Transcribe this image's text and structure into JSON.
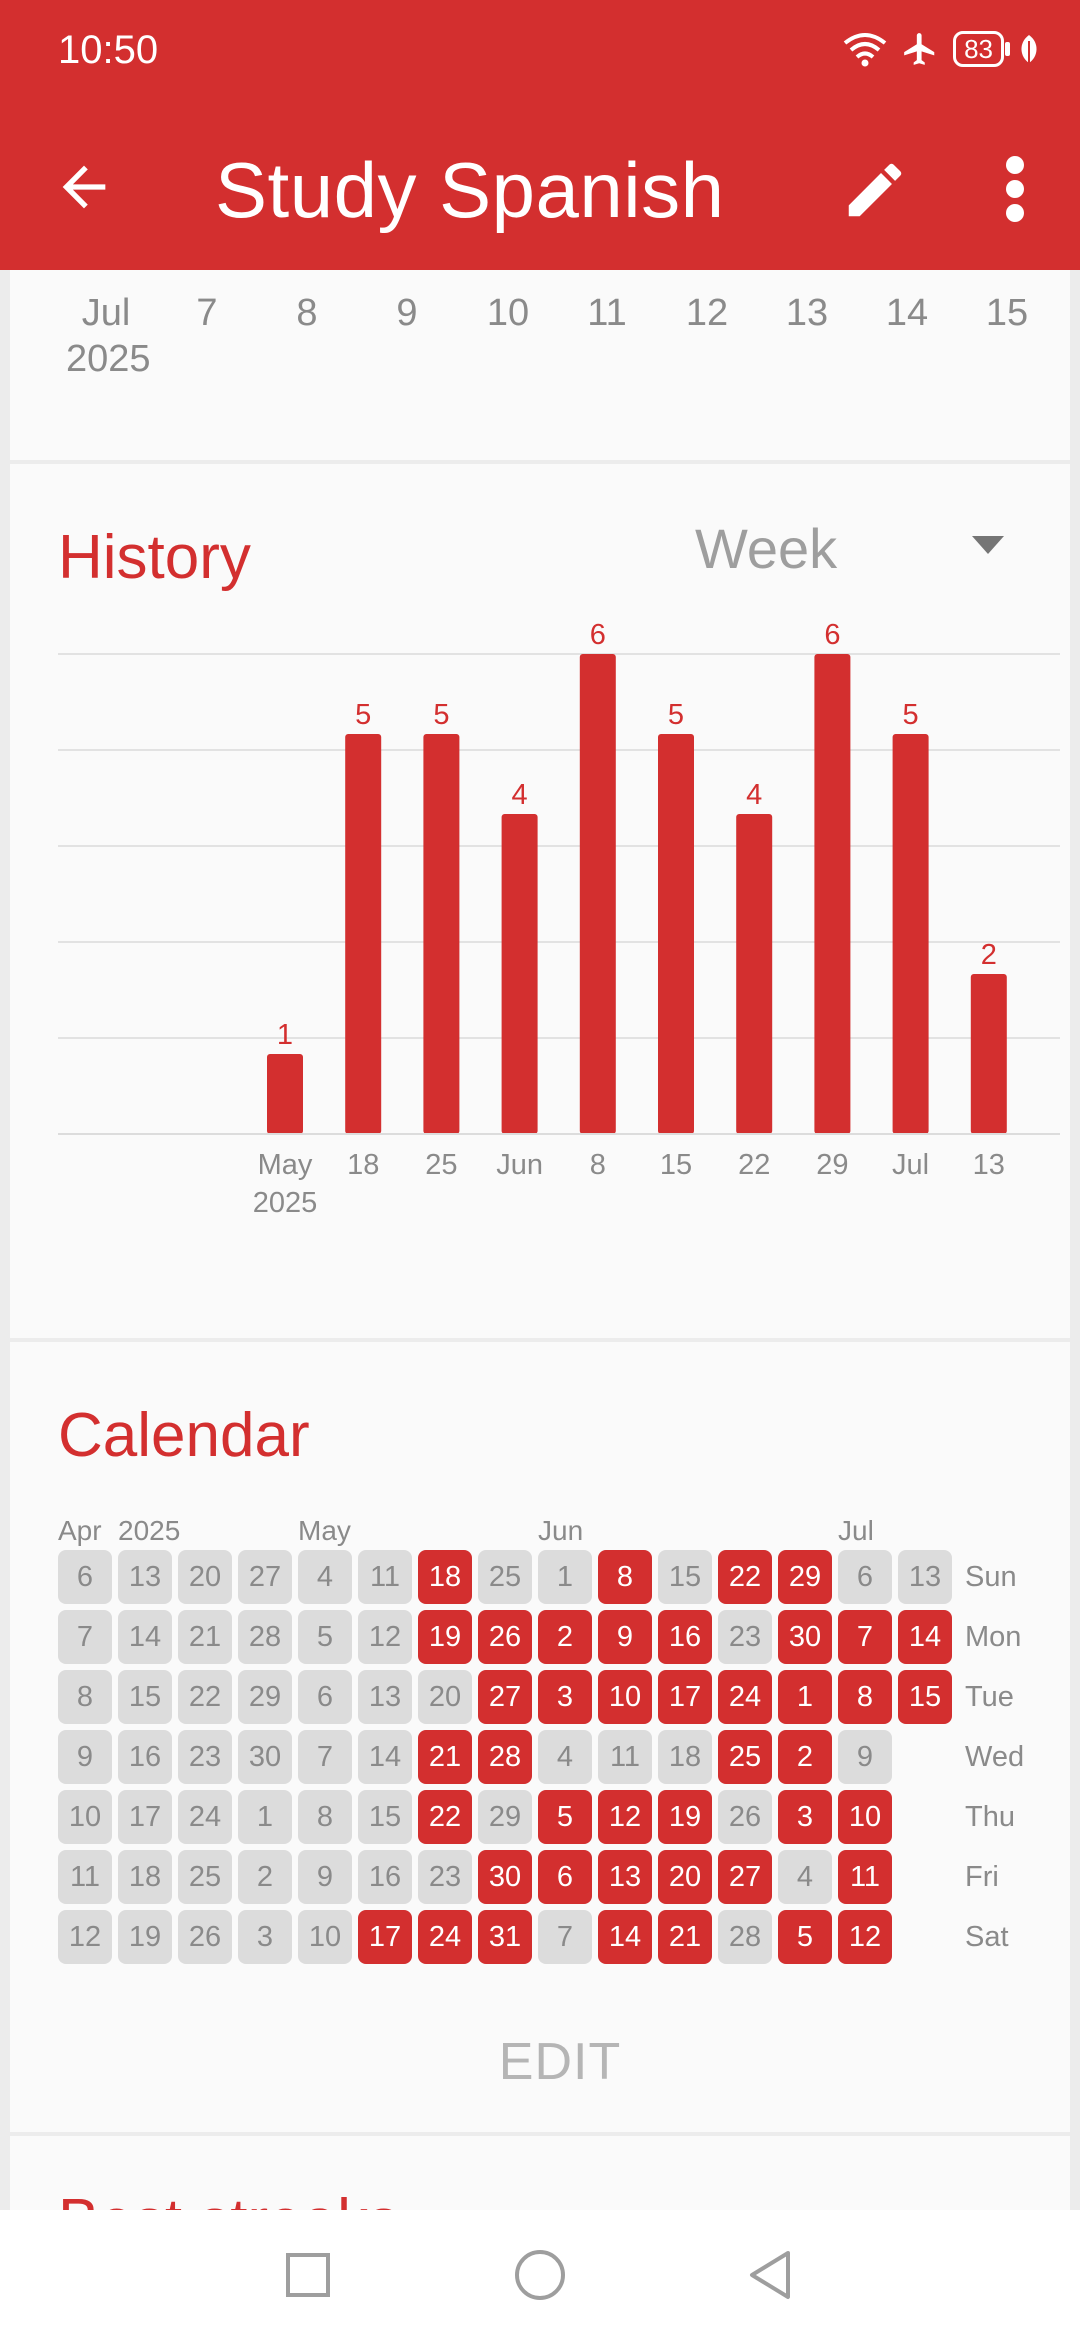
{
  "status_bar": {
    "time": "10:50",
    "battery": "83",
    "icons": [
      "wifi-icon",
      "airplane-icon",
      "battery-icon",
      "leaf-icon"
    ]
  },
  "app_bar": {
    "title": "Study Spanish",
    "back_icon": "arrow-left-icon",
    "edit_icon": "pencil-icon",
    "menu_icon": "more-vertical-icon"
  },
  "timeline": {
    "labels": [
      "Jul",
      "7",
      "8",
      "9",
      "10",
      "11",
      "12",
      "13",
      "14",
      "15"
    ],
    "year": "2025"
  },
  "history": {
    "title": "History",
    "period": "Week",
    "chart_data": {
      "type": "bar",
      "categories": [
        "May 2025",
        "18",
        "25",
        "Jun",
        "8",
        "15",
        "22",
        "29",
        "Jul",
        "13"
      ],
      "values": [
        1,
        5,
        5,
        4,
        6,
        5,
        4,
        6,
        5,
        2
      ],
      "ylim": [
        0,
        6
      ],
      "grid": true,
      "bar_color": "#d32f2f"
    }
  },
  "calendar": {
    "title": "Calendar",
    "months": [
      {
        "label": "Apr",
        "col": 0
      },
      {
        "label": "2025",
        "col": 1
      },
      {
        "label": "May",
        "col": 4
      },
      {
        "label": "Jun",
        "col": 8
      },
      {
        "label": "Jul",
        "col": 13
      }
    ],
    "weekdays": [
      "Sun",
      "Mon",
      "Tue",
      "Wed",
      "Thu",
      "Fri",
      "Sat"
    ],
    "weeks": [
      [
        {
          "d": "6",
          "a": 0
        },
        {
          "d": "7",
          "a": 0
        },
        {
          "d": "8",
          "a": 0
        },
        {
          "d": "9",
          "a": 0
        },
        {
          "d": "10",
          "a": 0
        },
        {
          "d": "11",
          "a": 0
        },
        {
          "d": "12",
          "a": 0
        }
      ],
      [
        {
          "d": "13",
          "a": 0
        },
        {
          "d": "14",
          "a": 0
        },
        {
          "d": "15",
          "a": 0
        },
        {
          "d": "16",
          "a": 0
        },
        {
          "d": "17",
          "a": 0
        },
        {
          "d": "18",
          "a": 0
        },
        {
          "d": "19",
          "a": 0
        }
      ],
      [
        {
          "d": "20",
          "a": 0
        },
        {
          "d": "21",
          "a": 0
        },
        {
          "d": "22",
          "a": 0
        },
        {
          "d": "23",
          "a": 0
        },
        {
          "d": "24",
          "a": 0
        },
        {
          "d": "25",
          "a": 0
        },
        {
          "d": "26",
          "a": 0
        }
      ],
      [
        {
          "d": "27",
          "a": 0
        },
        {
          "d": "28",
          "a": 0
        },
        {
          "d": "29",
          "a": 0
        },
        {
          "d": "30",
          "a": 0
        },
        {
          "d": "1",
          "a": 0
        },
        {
          "d": "2",
          "a": 0
        },
        {
          "d": "3",
          "a": 0
        }
      ],
      [
        {
          "d": "4",
          "a": 0
        },
        {
          "d": "5",
          "a": 0
        },
        {
          "d": "6",
          "a": 0
        },
        {
          "d": "7",
          "a": 0
        },
        {
          "d": "8",
          "a": 0
        },
        {
          "d": "9",
          "a": 0
        },
        {
          "d": "10",
          "a": 0
        }
      ],
      [
        {
          "d": "11",
          "a": 0
        },
        {
          "d": "12",
          "a": 0
        },
        {
          "d": "13",
          "a": 0
        },
        {
          "d": "14",
          "a": 0
        },
        {
          "d": "15",
          "a": 0
        },
        {
          "d": "16",
          "a": 0
        },
        {
          "d": "17",
          "a": 1
        }
      ],
      [
        {
          "d": "18",
          "a": 1
        },
        {
          "d": "19",
          "a": 1
        },
        {
          "d": "20",
          "a": 0
        },
        {
          "d": "21",
          "a": 1
        },
        {
          "d": "22",
          "a": 1
        },
        {
          "d": "23",
          "a": 0
        },
        {
          "d": "24",
          "a": 1
        }
      ],
      [
        {
          "d": "25",
          "a": 0
        },
        {
          "d": "26",
          "a": 1
        },
        {
          "d": "27",
          "a": 1
        },
        {
          "d": "28",
          "a": 1
        },
        {
          "d": "29",
          "a": 0
        },
        {
          "d": "30",
          "a": 1
        },
        {
          "d": "31",
          "a": 1
        }
      ],
      [
        {
          "d": "1",
          "a": 0
        },
        {
          "d": "2",
          "a": 1
        },
        {
          "d": "3",
          "a": 1
        },
        {
          "d": "4",
          "a": 0
        },
        {
          "d": "5",
          "a": 1
        },
        {
          "d": "6",
          "a": 1
        },
        {
          "d": "7",
          "a": 0
        }
      ],
      [
        {
          "d": "8",
          "a": 1
        },
        {
          "d": "9",
          "a": 1
        },
        {
          "d": "10",
          "a": 1
        },
        {
          "d": "11",
          "a": 0
        },
        {
          "d": "12",
          "a": 1
        },
        {
          "d": "13",
          "a": 1
        },
        {
          "d": "14",
          "a": 1
        }
      ],
      [
        {
          "d": "15",
          "a": 0
        },
        {
          "d": "16",
          "a": 1
        },
        {
          "d": "17",
          "a": 1
        },
        {
          "d": "18",
          "a": 0
        },
        {
          "d": "19",
          "a": 1
        },
        {
          "d": "20",
          "a": 1
        },
        {
          "d": "21",
          "a": 1
        }
      ],
      [
        {
          "d": "22",
          "a": 1
        },
        {
          "d": "23",
          "a": 0
        },
        {
          "d": "24",
          "a": 1
        },
        {
          "d": "25",
          "a": 1
        },
        {
          "d": "26",
          "a": 0
        },
        {
          "d": "27",
          "a": 1
        },
        {
          "d": "28",
          "a": 0
        }
      ],
      [
        {
          "d": "29",
          "a": 1
        },
        {
          "d": "30",
          "a": 1
        },
        {
          "d": "1",
          "a": 1
        },
        {
          "d": "2",
          "a": 1
        },
        {
          "d": "3",
          "a": 1
        },
        {
          "d": "4",
          "a": 0
        },
        {
          "d": "5",
          "a": 1
        }
      ],
      [
        {
          "d": "6",
          "a": 0
        },
        {
          "d": "7",
          "a": 1
        },
        {
          "d": "8",
          "a": 1
        },
        {
          "d": "9",
          "a": 0
        },
        {
          "d": "10",
          "a": 1
        },
        {
          "d": "11",
          "a": 1
        },
        {
          "d": "12",
          "a": 1
        }
      ],
      [
        {
          "d": "13",
          "a": 0
        },
        {
          "d": "14",
          "a": 1
        },
        {
          "d": "15",
          "a": 1
        }
      ]
    ],
    "edit_label": "EDIT"
  },
  "next_section": {
    "title": "Best streaks"
  },
  "nav_bar": {
    "icons": [
      "recents-square-icon",
      "home-circle-icon",
      "back-triangle-icon"
    ]
  },
  "colors": {
    "accent": "#d32f2f",
    "inactive_cell": "#dcdcdc",
    "muted_text": "#8a8a8a"
  }
}
